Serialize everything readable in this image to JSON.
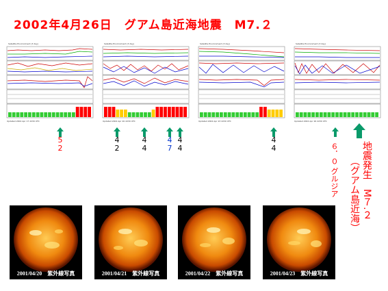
{
  "title": "2002年4月26日　グアム島近海地震　M7.２",
  "colors": {
    "title": "#ff0000",
    "arrow": "#0a9a6a",
    "number_black": "#000000",
    "number_red": "#ff0000",
    "number_blue": "#0033cc",
    "bar_green": "#33cc33",
    "bar_yellow": "#ffcc00",
    "bar_red": "#ff0000"
  },
  "charts": [
    {
      "header": "Satellite Environment (3 day)",
      "kp_colors": [
        "green",
        "green",
        "green",
        "green",
        "green",
        "green",
        "green",
        "green",
        "green",
        "green",
        "green",
        "green",
        "green",
        "green",
        "green",
        "green",
        "green",
        "red",
        "red",
        "red",
        "red"
      ]
    },
    {
      "header": "Satellite Environment (3 day)",
      "kp_colors": [
        "red",
        "red",
        "red",
        "yellow",
        "yellow",
        "yellow",
        "green",
        "green",
        "green",
        "green",
        "green",
        "green",
        "yellow",
        "red",
        "red",
        "red",
        "red",
        "red",
        "red",
        "red",
        "red"
      ]
    },
    {
      "header": "Satellite Environment (3 day)",
      "kp_colors": [
        "green",
        "green",
        "green",
        "green",
        "green",
        "green",
        "green",
        "green",
        "green",
        "green",
        "green",
        "green",
        "green",
        "green",
        "green",
        "red",
        "red",
        "yellow",
        "yellow",
        "yellow",
        "yellow"
      ]
    },
    {
      "header": "Satellite Environment (3 day)",
      "kp_colors": [
        "green",
        "green",
        "green",
        "green",
        "green",
        "green",
        "green",
        "green",
        "green",
        "green",
        "green",
        "green",
        "green",
        "green",
        "green",
        "green",
        "green",
        "green",
        "green",
        "green",
        "green"
      ]
    }
  ],
  "markers": [
    {
      "digits": [
        "5",
        "2"
      ],
      "color": "red"
    },
    {
      "digits": [
        "4",
        "2"
      ],
      "color": "black"
    },
    {
      "digits": [
        "4",
        "4"
      ],
      "color": "black"
    },
    {
      "digits": [
        "4",
        "7"
      ],
      "color": "blue"
    },
    {
      "digits": [
        "4",
        "4"
      ],
      "color": "black"
    },
    {
      "digits": [
        "4",
        "4"
      ],
      "color": "black"
    }
  ],
  "annotations": {
    "georgia": "６．０ グルジア",
    "quake_line1": "地震発生　M７.２",
    "quake_line2": "（グアム島近海）"
  },
  "suns": [
    {
      "caption": "2001/04/20　紫外線写真"
    },
    {
      "caption": "2001/04/21　紫外線写真"
    },
    {
      "caption": "2001/04/22　紫外線写真"
    },
    {
      "caption": "2001/04/23　紫外線写真"
    }
  ]
}
